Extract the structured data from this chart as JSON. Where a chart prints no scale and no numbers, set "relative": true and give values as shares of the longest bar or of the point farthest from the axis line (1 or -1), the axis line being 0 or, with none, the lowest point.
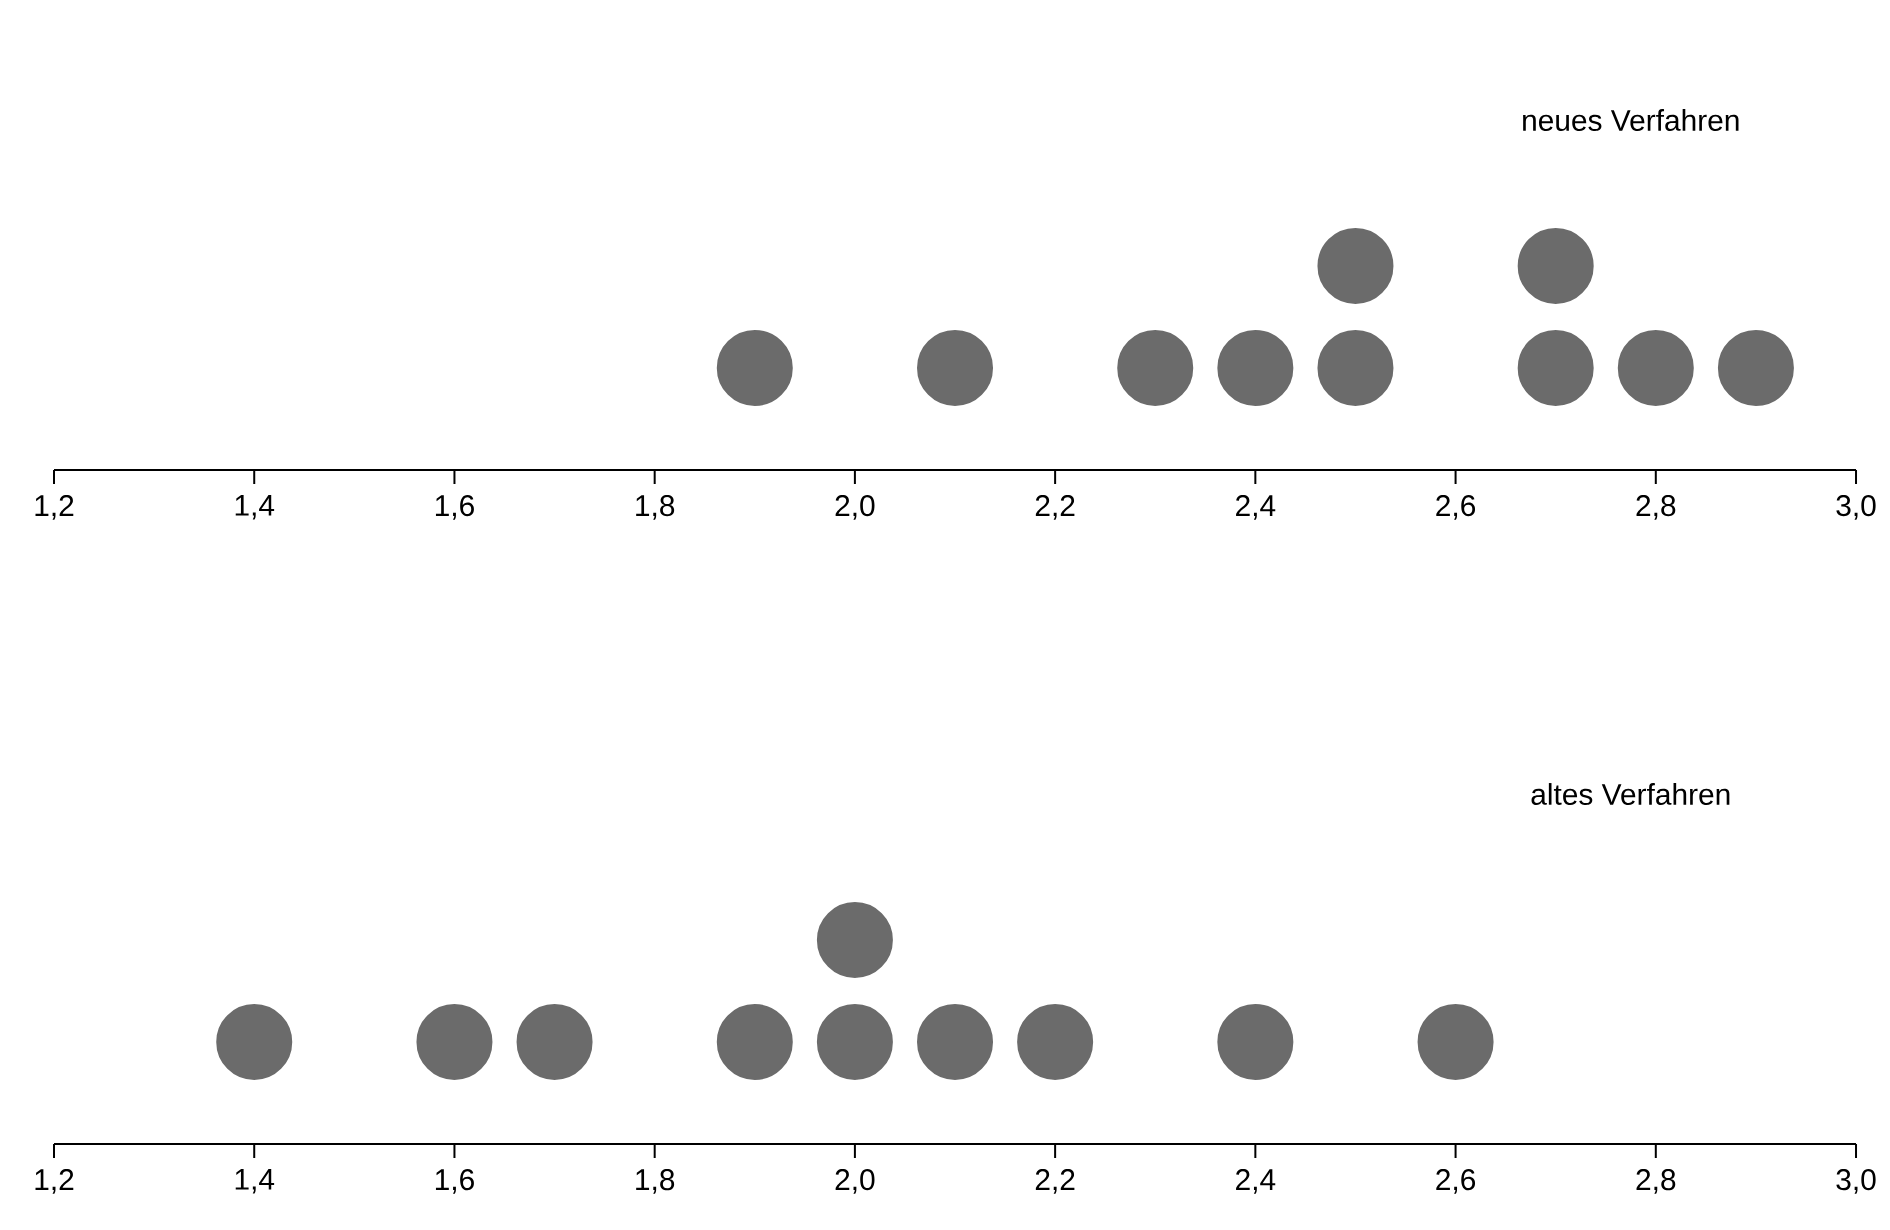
{
  "chart_data": [
    {
      "type": "scatter",
      "title": "neues Verfahren",
      "relative": true,
      "marker": "circle",
      "color": "#6b6b6b",
      "tick_labels": "x",
      "x": [
        1.9,
        2.1,
        2.3,
        2.4,
        2.5,
        2.5,
        2.7,
        2.7,
        2.8,
        2.9
      ],
      "values": [
        0.5,
        0.5,
        0.5,
        0.5,
        0.5,
        1,
        0.5,
        1,
        0.5,
        0.5
      ],
      "xlim": [
        1.2,
        3.0
      ],
      "xticks": [
        {
          "value": 1.2,
          "label": "1,2"
        },
        {
          "value": 1.4,
          "label": "1,4"
        },
        {
          "value": 1.6,
          "label": "1,6"
        },
        {
          "value": 1.8,
          "label": "1,8"
        },
        {
          "value": 2.0,
          "label": "2,0"
        },
        {
          "value": 2.2,
          "label": "2,2"
        },
        {
          "value": 2.4,
          "label": "2,4"
        },
        {
          "value": 2.6,
          "label": "2,6"
        },
        {
          "value": 2.8,
          "label": "2,8"
        },
        {
          "value": 3.0,
          "label": "3,0"
        }
      ]
    },
    {
      "type": "scatter",
      "title": "altes Verfahren",
      "relative": true,
      "marker": "circle",
      "color": "#6b6b6b",
      "tick_labels": "x",
      "x": [
        1.4,
        1.6,
        1.7,
        1.9,
        2.0,
        2.0,
        2.1,
        2.2,
        2.4,
        2.6
      ],
      "values": [
        0.5,
        0.5,
        0.5,
        0.5,
        0.5,
        1,
        0.5,
        0.5,
        0.5,
        0.5
      ],
      "xlim": [
        1.2,
        3.0
      ],
      "xticks": [
        {
          "value": 1.2,
          "label": "1,2"
        },
        {
          "value": 1.4,
          "label": "1,4"
        },
        {
          "value": 1.6,
          "label": "1,6"
        },
        {
          "value": 1.8,
          "label": "1,8"
        },
        {
          "value": 2.0,
          "label": "2,0"
        },
        {
          "value": 2.2,
          "label": "2,2"
        },
        {
          "value": 2.4,
          "label": "2,4"
        },
        {
          "value": 2.6,
          "label": "2,6"
        },
        {
          "value": 2.8,
          "label": "2,8"
        },
        {
          "value": 3.0,
          "label": "3,0"
        }
      ]
    }
  ]
}
